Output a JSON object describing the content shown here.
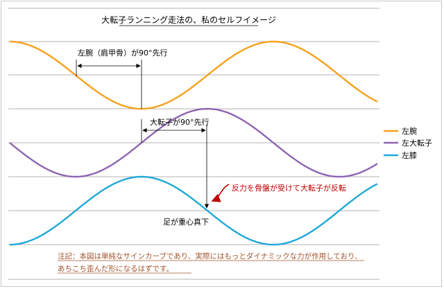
{
  "chart_data": {
    "type": "line",
    "title": "大転子ランニング走法の、私のセルフイメージ",
    "grid": true,
    "legend_position": "right",
    "series": [
      {
        "name": "左腕",
        "color": "#f5a11c",
        "phase": 0,
        "offset": 0
      },
      {
        "name": "左大転子",
        "color": "#8e63b1",
        "phase": 90,
        "offset": 0
      },
      {
        "name": "左膝",
        "color": "#1ea8d8",
        "phase": 180,
        "offset": 0
      }
    ],
    "annotations": {
      "arm_lead": "左腕（肩甲骨）が90°先行",
      "hip_lead": "大転子が90°先行",
      "reaction": "反力を骨盤が受けて大転子が反転",
      "foot": "足が重心真下",
      "note_line1": "注記：本図は単純なサインカーブであり、実際にはもっとダイナミックな力が作用しており、",
      "note_line2": "あちこち歪んだ形になるはずです。"
    }
  }
}
